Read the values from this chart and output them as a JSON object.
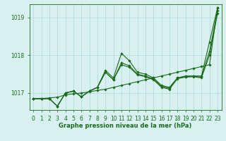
{
  "xlabel": "Graphe pression niveau de la mer (hPa)",
  "x": [
    0,
    1,
    2,
    3,
    4,
    5,
    6,
    7,
    8,
    9,
    10,
    11,
    12,
    13,
    14,
    15,
    16,
    17,
    18,
    19,
    20,
    21,
    22,
    23
  ],
  "line1": [
    1016.85,
    1016.85,
    1016.87,
    1016.89,
    1016.95,
    1016.98,
    1017.0,
    1017.03,
    1017.07,
    1017.1,
    1017.15,
    1017.2,
    1017.25,
    1017.3,
    1017.35,
    1017.4,
    1017.45,
    1017.5,
    1017.55,
    1017.6,
    1017.65,
    1017.7,
    1017.75,
    1019.25
  ],
  "line2": [
    1016.85,
    1016.85,
    1016.85,
    1016.65,
    1017.0,
    1017.05,
    1016.9,
    1017.05,
    1017.15,
    1017.6,
    1017.4,
    1018.05,
    1017.85,
    1017.55,
    1017.5,
    1017.4,
    1017.2,
    1017.15,
    1017.4,
    1017.45,
    1017.45,
    1017.45,
    1018.35,
    1019.25
  ],
  "line3": [
    1016.85,
    1016.85,
    1016.85,
    1016.65,
    1017.0,
    1017.05,
    1016.9,
    1017.05,
    1017.15,
    1017.55,
    1017.35,
    1017.8,
    1017.72,
    1017.5,
    1017.45,
    1017.37,
    1017.18,
    1017.12,
    1017.4,
    1017.43,
    1017.45,
    1017.42,
    1018.1,
    1019.18
  ],
  "line4": [
    1016.85,
    1016.85,
    1016.85,
    1016.65,
    1017.0,
    1017.05,
    1016.9,
    1017.05,
    1017.15,
    1017.55,
    1017.35,
    1017.75,
    1017.68,
    1017.48,
    1017.43,
    1017.35,
    1017.15,
    1017.1,
    1017.38,
    1017.42,
    1017.43,
    1017.4,
    1018.0,
    1019.1
  ],
  "line_color": "#1a6b1a",
  "bg_color": "#d8f0f0",
  "grid_color": "#afd8d8",
  "ylim": [
    1016.55,
    1019.35
  ],
  "yticks": [
    1017,
    1018,
    1019
  ],
  "ytick_labels": [
    "1017",
    "1018",
    "1019"
  ],
  "xlim": [
    -0.5,
    23.5
  ],
  "marker": "D",
  "marker_size": 1.8,
  "line_width": 0.8,
  "tick_fontsize": 5.5,
  "xlabel_fontsize": 6.0
}
